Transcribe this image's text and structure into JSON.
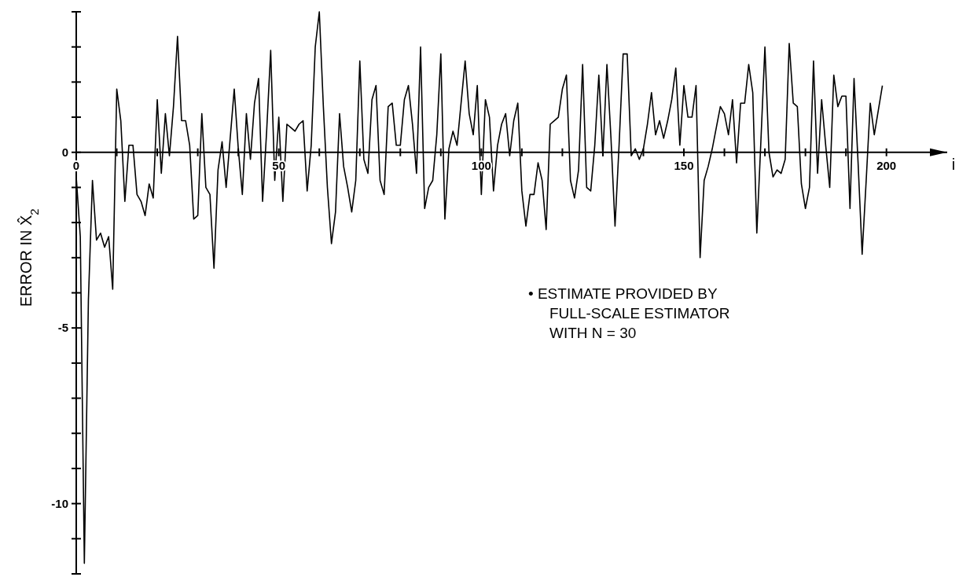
{
  "chart_data": {
    "type": "line",
    "xlabel": "i",
    "ylabel": "ERROR IN X̂$_{2}$",
    "annotations": [
      "• ESTIMATE PROVIDED BY\nFULL-SCALE ESTIMATOR\nWITH N =  30"
    ],
    "xlim": [
      0,
      215
    ],
    "ylim": [
      -12,
      4
    ],
    "xticks": [
      0,
      {
        "value": 10,
        "label": null
      },
      {
        "value": 20,
        "label": null
      },
      {
        "value": 30,
        "label": null
      },
      {
        "value": 40,
        "label": null
      },
      50,
      {
        "value": 60,
        "label": null
      },
      {
        "value": 70,
        "label": null
      },
      {
        "value": 80,
        "label": null
      },
      {
        "value": 90,
        "label": null
      },
      100,
      {
        "value": 110,
        "label": null
      },
      {
        "value": 120,
        "label": null
      },
      {
        "value": 130,
        "label": null
      },
      {
        "value": 140,
        "label": null
      },
      150,
      {
        "value": 160,
        "label": null
      },
      {
        "value": 170,
        "label": null
      },
      {
        "value": 180,
        "label": null
      },
      {
        "value": 190,
        "label": null
      },
      200
    ],
    "yticks": [
      {
        "value": -12,
        "label": null
      },
      {
        "value": -11,
        "label": null
      },
      -10,
      {
        "value": -9,
        "label": null
      },
      {
        "value": -8,
        "label": null
      },
      {
        "value": -7,
        "label": null
      },
      {
        "value": -6,
        "label": null
      },
      -5,
      {
        "value": -4,
        "label": null
      },
      {
        "value": -3,
        "label": null
      },
      {
        "value": -2,
        "label": null
      },
      {
        "value": -1,
        "label": null
      },
      0,
      {
        "value": 1,
        "label": null
      },
      {
        "value": 2,
        "label": null
      },
      {
        "value": 3,
        "label": null
      },
      {
        "value": 4,
        "label": null
      }
    ],
    "series": [
      {
        "color": "#000000",
        "x": [
          0,
          1,
          2,
          3,
          4,
          5,
          6,
          7,
          8,
          9,
          10,
          11,
          12,
          13,
          14,
          15,
          16,
          17,
          18,
          19,
          20,
          21,
          22,
          23,
          24,
          25,
          26,
          27,
          28,
          29,
          30,
          31,
          32,
          33,
          34,
          35,
          36,
          37,
          38,
          39,
          40,
          41,
          42,
          43,
          44,
          45,
          46,
          47,
          48,
          49,
          50,
          51,
          52,
          53,
          54,
          55,
          56,
          57,
          58,
          59,
          60,
          61,
          62,
          63,
          64,
          65,
          66,
          67,
          68,
          69,
          70,
          71,
          72,
          73,
          74,
          75,
          76,
          77,
          78,
          79,
          80,
          81,
          82,
          83,
          84,
          85,
          86,
          87,
          88,
          89,
          90,
          91,
          92,
          93,
          94,
          95,
          96,
          97,
          98,
          99,
          100,
          101,
          102,
          103,
          104,
          105,
          106,
          107,
          108,
          109,
          110,
          111,
          112,
          113,
          114,
          115,
          116,
          117,
          118,
          119,
          120,
          121,
          122,
          123,
          124,
          125,
          126,
          127,
          128,
          129,
          130,
          131,
          132,
          133,
          134,
          135,
          136,
          137,
          138,
          139,
          140,
          141,
          142,
          143,
          144,
          145,
          146,
          147,
          148,
          149,
          150,
          151,
          152,
          153,
          154,
          155,
          156,
          157,
          158,
          159,
          160,
          161,
          162,
          163,
          164,
          165,
          166,
          167,
          168,
          169,
          170,
          171,
          172,
          173,
          174,
          175,
          176,
          177,
          178,
          179,
          180,
          181,
          182,
          183,
          184,
          185,
          186,
          187,
          188,
          189,
          190,
          191,
          192,
          193,
          194,
          195,
          196,
          197,
          198,
          199
        ],
        "values": [
          -0.7,
          -2.4,
          -11.7,
          -4.2,
          -0.8,
          -2.5,
          -2.3,
          -2.7,
          -2.4,
          -3.9,
          1.8,
          0.9,
          -1.4,
          0.2,
          0.2,
          -1.2,
          -1.4,
          -1.8,
          -0.9,
          -1.3,
          1.5,
          -0.6,
          1.1,
          -0.1,
          1.3,
          3.3,
          0.9,
          0.9,
          0.2,
          -1.9,
          -1.8,
          1.1,
          -1.0,
          -1.2,
          -3.3,
          -0.5,
          0.3,
          -1.0,
          0.4,
          1.8,
          0.1,
          -1.2,
          1.1,
          -0.2,
          1.4,
          2.1,
          -1.4,
          0.6,
          2.9,
          -0.8,
          1.0,
          -1.4,
          0.8,
          0.7,
          0.6,
          0.8,
          0.9,
          -1.1,
          0.2,
          3.0,
          4.0,
          1.3,
          -1.0,
          -2.6,
          -1.7,
          1.1,
          -0.4,
          -1.0,
          -1.7,
          -0.8,
          2.6,
          -0.2,
          -0.6,
          1.5,
          1.9,
          -0.8,
          -1.2,
          1.3,
          1.4,
          0.2,
          0.2,
          1.5,
          1.9,
          0.8,
          -0.6,
          3.0,
          -1.6,
          -1.0,
          -0.8,
          0.5,
          2.8,
          -1.9,
          0.1,
          0.6,
          0.2,
          1.4,
          2.6,
          1.1,
          0.5,
          1.9,
          -1.2,
          1.5,
          1.0,
          -1.1,
          0.2,
          0.8,
          1.1,
          -0.1,
          0.9,
          1.4,
          -1.1,
          -2.1,
          -1.2,
          -1.2,
          -0.3,
          -0.8,
          -2.2,
          0.8,
          0.9,
          1.0,
          1.8,
          2.2,
          -0.8,
          -1.3,
          -0.5,
          2.5,
          -1.0,
          -1.1,
          0.2,
          2.2,
          -0.1,
          2.5,
          0.4,
          -2.1,
          0.2,
          2.8,
          2.8,
          -0.1,
          0.1,
          -0.2,
          0.1,
          0.8,
          1.7,
          0.5,
          0.9,
          0.4,
          0.9,
          1.5,
          2.4,
          0.2,
          1.9,
          1.0,
          1.0,
          1.9,
          -3.0,
          -0.8,
          -0.4,
          0.1,
          0.7,
          1.3,
          1.1,
          0.5,
          1.5,
          -0.3,
          1.4,
          1.4,
          2.5,
          1.7,
          -2.3,
          0.3,
          3.0,
          0.0,
          -0.7,
          -0.5,
          -0.6,
          -0.2,
          3.1,
          1.4,
          1.3,
          -0.9,
          -1.6,
          -1.0,
          2.6,
          -0.6,
          1.5,
          0.2,
          -1.0,
          2.2,
          1.3,
          1.6,
          1.6,
          -1.6,
          2.1,
          -0.3,
          -2.9,
          -0.8,
          1.4,
          0.5,
          1.2,
          1.9
        ]
      }
    ]
  }
}
